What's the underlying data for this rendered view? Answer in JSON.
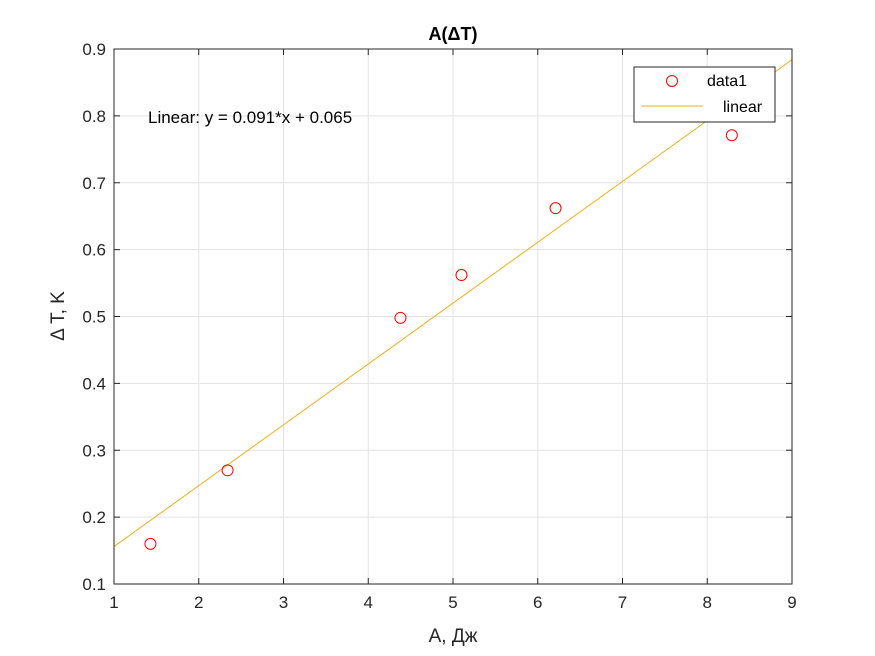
{
  "chart_data": {
    "type": "scatter",
    "title": "A(ΔT)",
    "xlabel": "A, Дж",
    "ylabel": "Δ T, K",
    "xlim": [
      1,
      9
    ],
    "ylim": [
      0.1,
      0.9
    ],
    "xticks": [
      "1",
      "2",
      "3",
      "4",
      "5",
      "6",
      "7",
      "8",
      "9"
    ],
    "yticks": [
      "0.1",
      "0.2",
      "0.3",
      "0.4",
      "0.5",
      "0.6",
      "0.7",
      "0.8",
      "0.9"
    ],
    "grid": true,
    "legend_position": "top-right",
    "annotation": "Linear:  y = 0.091*x + 0.065",
    "series": [
      {
        "name": "data1",
        "kind": "scatter",
        "marker": "circle",
        "color": "#ff0000",
        "x": [
          1.43,
          2.34,
          4.38,
          5.1,
          6.21,
          8.29
        ],
        "y": [
          0.16,
          0.27,
          0.498,
          0.562,
          0.662,
          0.771
        ]
      },
      {
        "name": "linear",
        "kind": "line",
        "color": "#edb120",
        "slope": 0.091,
        "intercept": 0.065
      }
    ]
  }
}
